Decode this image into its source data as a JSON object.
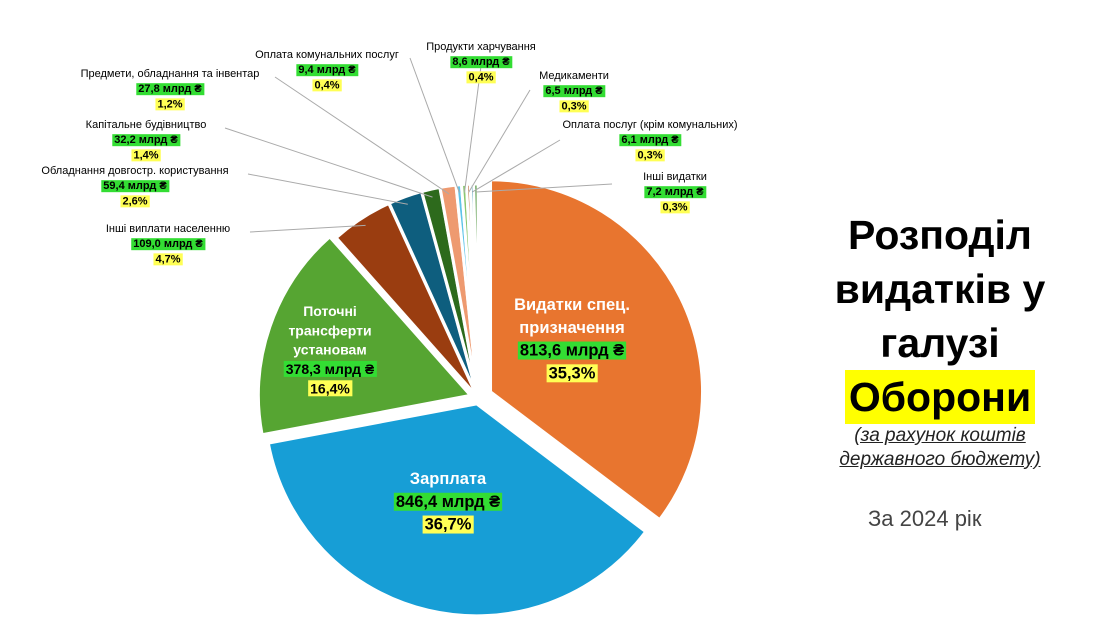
{
  "title": {
    "lines": [
      "Розподіл",
      "видатків у",
      "галузі"
    ],
    "highlight": "Оборони",
    "highlight_color": "#ffff00",
    "subtitle_lines": [
      "(за рахунок коштів",
      "державного бюджету)"
    ],
    "year": "За 2024 рік"
  },
  "colors": {
    "amount_bg": "#33dd33",
    "percent_bg": "#ffff55"
  },
  "chart_data": {
    "type": "pie",
    "unit": "млрд ₴",
    "slices": [
      {
        "label": "Видатки спец. призначення",
        "value": 813.6,
        "amount": "813,6 млрд ₴",
        "percent": "35,3%",
        "color": "#e8752f"
      },
      {
        "label": "Зарплата",
        "value": 846.4,
        "amount": "846,4 млрд ₴",
        "percent": "36,7%",
        "color": "#179ed6"
      },
      {
        "label": "Поточні трансферти установам",
        "value": 378.3,
        "amount": "378,3 млрд ₴",
        "percent": "16,4%",
        "color": "#56a532"
      },
      {
        "label": "Інші виплати населенню",
        "value": 109.0,
        "amount": "109,0 млрд ₴",
        "percent": "4,7%",
        "color": "#9a3d10"
      },
      {
        "label": "Обладнання довгостр. користування",
        "value": 59.4,
        "amount": "59,4 млрд ₴",
        "percent": "2,6%",
        "color": "#0e5e7e"
      },
      {
        "label": "Капітальне будівництво",
        "value": 32.2,
        "amount": "32,2 млрд ₴",
        "percent": "1,4%",
        "color": "#2d6a1c"
      },
      {
        "label": "Предмети, обладнання та інвентар",
        "value": 27.8,
        "amount": "27,8 млрд ₴",
        "percent": "1,2%",
        "color": "#ee9a70"
      },
      {
        "label": "Оплата комунальних послуг",
        "value": 9.4,
        "amount": "9,4 млрд ₴",
        "percent": "0,4%",
        "color": "#5ec4e8"
      },
      {
        "label": "Продукти харчування",
        "value": 8.6,
        "amount": "8,6 млрд ₴",
        "percent": "0,4%",
        "color": "#8cc870"
      },
      {
        "label": "Медикаменти",
        "value": 6.5,
        "amount": "6,5 млрд ₴",
        "percent": "0,3%",
        "color": "#c07040"
      },
      {
        "label": "Оплата послуг (крім комунальних)",
        "value": 6.1,
        "amount": "6,1 млрд ₴",
        "percent": "0,3%",
        "color": "#1a80a8"
      },
      {
        "label": "Інші видатки",
        "value": 7.2,
        "amount": "7,2 млрд ₴",
        "percent": "0,3%",
        "color": "#3e8a2a"
      }
    ]
  }
}
